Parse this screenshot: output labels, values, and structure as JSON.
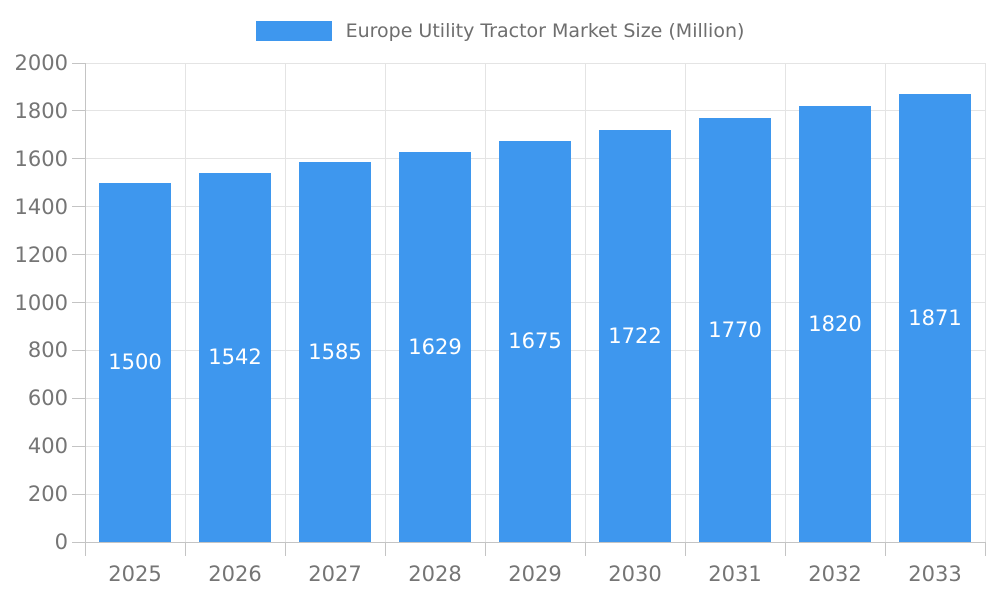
{
  "legend": {
    "series_label": "Europe Utility Tractor Market Size (Million)"
  },
  "chart_data": {
    "type": "bar",
    "title": "Europe Utility Tractor Market Size (Million)",
    "categories": [
      "2025",
      "2026",
      "2027",
      "2028",
      "2029",
      "2030",
      "2031",
      "2032",
      "2033"
    ],
    "series": [
      {
        "name": "Europe Utility Tractor Market Size (Million)",
        "values": [
          1500,
          1542,
          1585,
          1629,
          1675,
          1722,
          1770,
          1820,
          1871
        ]
      }
    ],
    "xlabel": "",
    "ylabel": "",
    "ylim": [
      0,
      2000
    ],
    "ytick_step": 200,
    "grid": true,
    "legend_position": "top",
    "value_labels": "white, centered inside bars"
  },
  "colors": {
    "bar": "#3E97EE",
    "grid": "#E4E4E4",
    "axis": "#C4C4C4",
    "axis_text": "#757575",
    "legend_text": "#6E6E6E",
    "value_text": "#FFFFFF",
    "background": "#FFFFFF"
  }
}
